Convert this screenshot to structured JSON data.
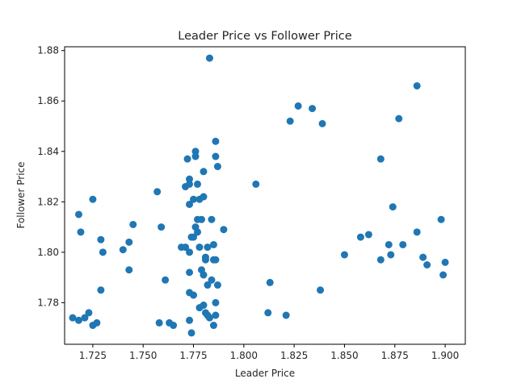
{
  "chart_data": {
    "type": "scatter",
    "title": "Leader Price vs Follower Price",
    "xlabel": "Leader Price",
    "ylabel": "Follower Price",
    "xlim": [
      1.711,
      1.91
    ],
    "ylim": [
      1.7635,
      1.8815
    ],
    "xticks": [
      "1.725",
      "1.750",
      "1.775",
      "1.800",
      "1.825",
      "1.850",
      "1.875",
      "1.900"
    ],
    "xtick_values": [
      1.725,
      1.75,
      1.775,
      1.8,
      1.825,
      1.85,
      1.875,
      1.9
    ],
    "yticks": [
      "1.78",
      "1.80",
      "1.82",
      "1.84",
      "1.86",
      "1.88"
    ],
    "ytick_values": [
      1.78,
      1.8,
      1.82,
      1.84,
      1.86,
      1.88
    ],
    "grid": false,
    "marker_color": "#1f77b4",
    "series": [
      {
        "points": [
          [
            1.715,
            1.774
          ],
          [
            1.718,
            1.773
          ],
          [
            1.721,
            1.774
          ],
          [
            1.723,
            1.776
          ],
          [
            1.725,
            1.771
          ],
          [
            1.727,
            1.772
          ],
          [
            1.718,
            1.815
          ],
          [
            1.719,
            1.808
          ],
          [
            1.725,
            1.821
          ],
          [
            1.729,
            1.805
          ],
          [
            1.73,
            1.8
          ],
          [
            1.729,
            1.785
          ],
          [
            1.74,
            1.801
          ],
          [
            1.743,
            1.804
          ],
          [
            1.743,
            1.793
          ],
          [
            1.745,
            1.811
          ],
          [
            1.757,
            1.824
          ],
          [
            1.758,
            1.772
          ],
          [
            1.759,
            1.81
          ],
          [
            1.761,
            1.789
          ],
          [
            1.763,
            1.772
          ],
          [
            1.765,
            1.771
          ],
          [
            1.769,
            1.802
          ],
          [
            1.771,
            1.802
          ],
          [
            1.771,
            1.826
          ],
          [
            1.772,
            1.837
          ],
          [
            1.773,
            1.819
          ],
          [
            1.773,
            1.827
          ],
          [
            1.773,
            1.829
          ],
          [
            1.773,
            1.784
          ],
          [
            1.773,
            1.792
          ],
          [
            1.773,
            1.8
          ],
          [
            1.773,
            1.773
          ],
          [
            1.774,
            1.806
          ],
          [
            1.774,
            1.768
          ],
          [
            1.775,
            1.821
          ],
          [
            1.775,
            1.783
          ],
          [
            1.775,
            1.806
          ],
          [
            1.776,
            1.838
          ],
          [
            1.776,
            1.84
          ],
          [
            1.776,
            1.81
          ],
          [
            1.777,
            1.808
          ],
          [
            1.777,
            1.827
          ],
          [
            1.777,
            1.813
          ],
          [
            1.778,
            1.821
          ],
          [
            1.778,
            1.802
          ],
          [
            1.778,
            1.778
          ],
          [
            1.779,
            1.813
          ],
          [
            1.779,
            1.793
          ],
          [
            1.78,
            1.832
          ],
          [
            1.78,
            1.822
          ],
          [
            1.78,
            1.791
          ],
          [
            1.78,
            1.779
          ],
          [
            1.781,
            1.798
          ],
          [
            1.781,
            1.797
          ],
          [
            1.781,
            1.776
          ],
          [
            1.782,
            1.775
          ],
          [
            1.782,
            1.802
          ],
          [
            1.782,
            1.787
          ],
          [
            1.783,
            1.877
          ],
          [
            1.783,
            1.774
          ],
          [
            1.784,
            1.813
          ],
          [
            1.784,
            1.789
          ],
          [
            1.785,
            1.797
          ],
          [
            1.785,
            1.771
          ],
          [
            1.785,
            1.803
          ],
          [
            1.786,
            1.844
          ],
          [
            1.786,
            1.838
          ],
          [
            1.786,
            1.775
          ],
          [
            1.786,
            1.797
          ],
          [
            1.786,
            1.78
          ],
          [
            1.787,
            1.834
          ],
          [
            1.787,
            1.787
          ],
          [
            1.79,
            1.809
          ],
          [
            1.806,
            1.827
          ],
          [
            1.812,
            1.776
          ],
          [
            1.813,
            1.788
          ],
          [
            1.821,
            1.775
          ],
          [
            1.823,
            1.852
          ],
          [
            1.827,
            1.858
          ],
          [
            1.834,
            1.857
          ],
          [
            1.838,
            1.785
          ],
          [
            1.839,
            1.851
          ],
          [
            1.85,
            1.799
          ],
          [
            1.858,
            1.806
          ],
          [
            1.862,
            1.807
          ],
          [
            1.868,
            1.837
          ],
          [
            1.868,
            1.797
          ],
          [
            1.872,
            1.803
          ],
          [
            1.873,
            1.799
          ],
          [
            1.874,
            1.818
          ],
          [
            1.877,
            1.853
          ],
          [
            1.879,
            1.803
          ],
          [
            1.886,
            1.866
          ],
          [
            1.886,
            1.808
          ],
          [
            1.889,
            1.798
          ],
          [
            1.891,
            1.795
          ],
          [
            1.898,
            1.813
          ],
          [
            1.899,
            1.791
          ],
          [
            1.9,
            1.796
          ]
        ]
      }
    ]
  }
}
